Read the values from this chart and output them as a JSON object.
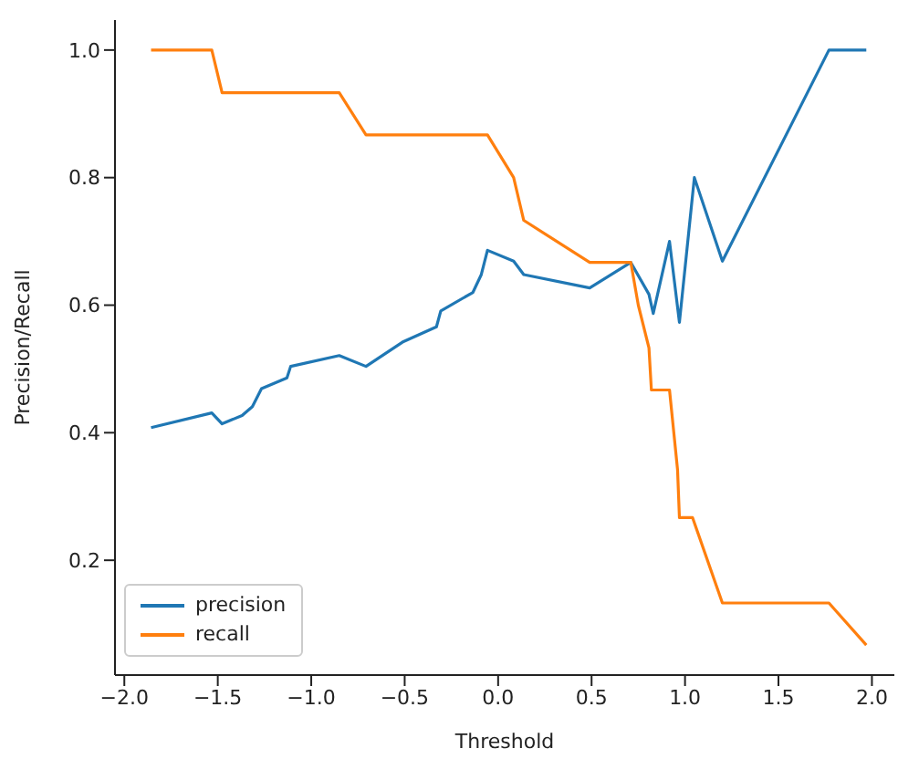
{
  "chart_data": {
    "type": "line",
    "xlabel": "Threshold",
    "ylabel": "Precision/Recall",
    "xlim": [
      -2.05,
      2.12
    ],
    "ylim": [
      0.02,
      1.047
    ],
    "xticks": [
      {
        "value": -2,
        "label": "−2.0"
      },
      {
        "value": -1.5,
        "label": "−1.5"
      },
      {
        "value": -1,
        "label": "−1.0"
      },
      {
        "value": -0.5,
        "label": "−0.5"
      },
      {
        "value": 0,
        "label": "0.0"
      },
      0.5,
      {
        "value": 1,
        "label": "1.0"
      },
      1.5,
      {
        "value": 2,
        "label": "2.0"
      }
    ],
    "yticks": [
      0.2,
      0.4,
      0.6,
      0.8,
      {
        "value": 1,
        "label": "1.0"
      }
    ],
    "grid": false,
    "legend": "bottom left",
    "marker": "none",
    "line_style": "solid",
    "series": [
      {
        "name": "precision",
        "color": "#1f77b4",
        "x": [
          -1.857,
          -1.532,
          -1.477,
          -1.37,
          -1.315,
          -1.266,
          -1.13,
          -1.11,
          -0.85,
          -0.707,
          -0.512,
          -0.33,
          -0.307,
          -0.135,
          -0.09,
          -0.057,
          0.083,
          0.137,
          0.49,
          0.71,
          0.807,
          0.83,
          0.917,
          0.97,
          1.05,
          1.2,
          1.77,
          1.97
        ],
        "values": [
          0.408,
          0.431,
          0.414,
          0.427,
          0.441,
          0.469,
          0.486,
          0.504,
          0.521,
          0.504,
          0.542,
          0.566,
          0.591,
          0.62,
          0.648,
          0.686,
          0.669,
          0.648,
          0.627,
          0.667,
          0.617,
          0.587,
          0.7,
          0.573,
          0.8,
          0.669,
          1.0,
          1.0
        ]
      },
      {
        "name": "recall",
        "color": "#ff7f0e",
        "x": [
          -1.857,
          -1.532,
          -1.477,
          -0.85,
          -0.707,
          -0.057,
          0.083,
          0.137,
          0.49,
          0.71,
          0.75,
          0.807,
          0.82,
          0.917,
          0.96,
          0.97,
          1.04,
          1.2,
          1.77,
          1.97
        ],
        "values": [
          1.0,
          1.0,
          0.933,
          0.933,
          0.867,
          0.867,
          0.8,
          0.733,
          0.667,
          0.667,
          0.6,
          0.533,
          0.467,
          0.467,
          0.342,
          0.267,
          0.267,
          0.133,
          0.133,
          0.067
        ]
      }
    ]
  }
}
